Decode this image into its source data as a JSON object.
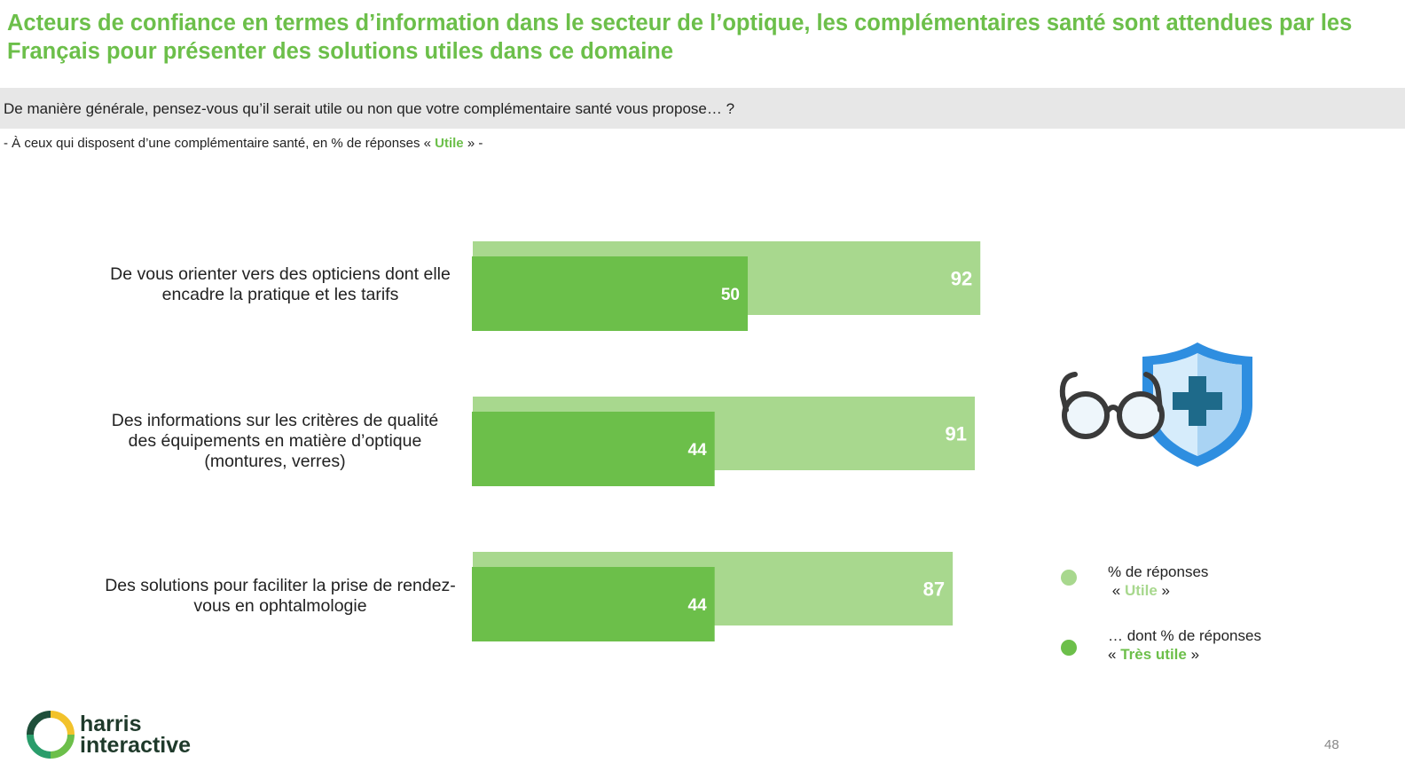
{
  "title": "Acteurs de confiance en termes d’information dans le secteur de l’optique, les complémentaires santé sont attendues par les Français pour présenter des solutions utiles dans ce domaine",
  "question": "De manière générale, pensez-vous qu’il serait utile ou non que votre complémentaire santé vous propose… ?",
  "base": {
    "prefix": "- À ceux qui disposent d’une complémentaire santé, en % de réponses «",
    "highlight": "Utile",
    "suffix": "» -"
  },
  "legend": {
    "utile": {
      "line1": "% de réponses",
      "open": "«",
      "word": "Utile",
      "close": "»"
    },
    "tres_utile": {
      "line1": "… dont % de réponses",
      "open": "«",
      "word": "Très utile",
      "close": "»"
    }
  },
  "brand": {
    "line1": "harris",
    "line2": "interactive"
  },
  "page_number": "48",
  "icons": [
    "harris-logo-icon",
    "glasses-icon",
    "health-shield-icon"
  ],
  "colors": {
    "title": "#6cbf4a",
    "utile": "#a8d88e",
    "tres_utile": "#6cbf4a",
    "shield": "#2e8ee0",
    "cross": "#1e6a8a"
  },
  "chart_data": {
    "type": "bar",
    "orientation": "horizontal",
    "categories": [
      "De vous orienter vers des opticiens dont elle encadre la pratique et les tarifs",
      "Des informations sur les critères de qualité des équipements en matière d’optique (montures, verres)",
      "Des solutions pour faciliter la prise de rendez-vous en ophtalmologie"
    ],
    "series": [
      {
        "name": "% de réponses « Utile »",
        "color": "#a8d88e",
        "values": [
          92,
          91,
          87
        ]
      },
      {
        "name": "… dont % de réponses « Très utile »",
        "color": "#6cbf4a",
        "values": [
          50,
          44,
          44
        ]
      }
    ],
    "xlim": [
      0,
      100
    ],
    "grid": false,
    "legend_position": "right"
  }
}
